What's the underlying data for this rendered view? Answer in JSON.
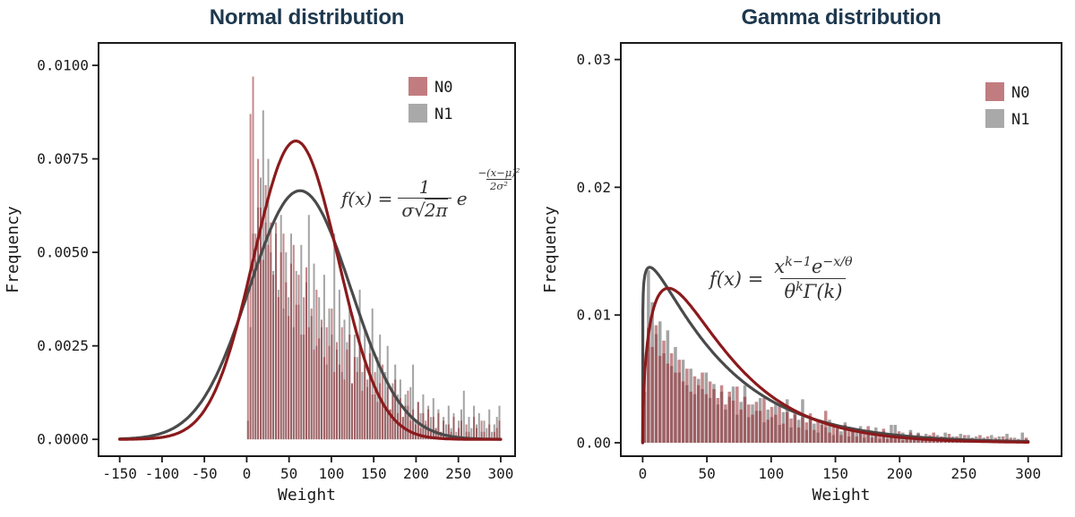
{
  "figure": {
    "background": "#ffffff"
  },
  "chart_data": [
    {
      "type": "histogram+density",
      "title": "Normal distribution",
      "title_color": "#1d384e",
      "xlabel": "Weight",
      "ylabel": "Frequency",
      "xlim": [
        -175,
        317
      ],
      "ylim": [
        -0.00045,
        0.0106
      ],
      "grid": false,
      "x_ticks": [
        {
          "label": "-150",
          "value": -150
        },
        {
          "label": "-100",
          "value": -100
        },
        {
          "label": "-50",
          "value": -50
        },
        {
          "label": "0",
          "value": 0
        },
        {
          "label": "50",
          "value": 50
        },
        {
          "label": "100",
          "value": 100
        },
        {
          "label": "150",
          "value": 150
        },
        {
          "label": "200",
          "value": 200
        },
        {
          "label": "250",
          "value": 250
        },
        {
          "label": "300",
          "value": 300
        }
      ],
      "y_ticks": [
        {
          "label": "0.0000",
          "value": 0.0
        },
        {
          "label": "0.0025",
          "value": 0.0025
        },
        {
          "label": "0.0050",
          "value": 0.005
        },
        {
          "label": "0.0075",
          "value": 0.0075
        },
        {
          "label": "0.0100",
          "value": 0.01
        }
      ],
      "legend": {
        "position": "upper-right",
        "items": [
          {
            "label": "N0",
            "color": "#c17c80"
          },
          {
            "label": "N1",
            "color": "#a9a9a9"
          }
        ]
      },
      "histogram": {
        "bin_start": 0,
        "bin_width": 3,
        "height_scale": 0.0001,
        "series": [
          {
            "name": "N1",
            "fill": "#4a4a4a",
            "opacity": 0.5,
            "heights": [
              5,
              30,
              55,
              48,
              62,
              70,
              88,
              58,
              75,
              50,
              45,
              55,
              40,
              60,
              35,
              50,
              38,
              55,
              30,
              45,
              36,
              52,
              28,
              42,
              60,
              33,
              47,
              25,
              38,
              30,
              44,
              20,
              35,
              28,
              55,
              24,
              40,
              18,
              32,
              26,
              36,
              15,
              28,
              22,
              40,
              18,
              30,
              14,
              25,
              35,
              12,
              22,
              28,
              10,
              18,
              25,
              8,
              15,
              20,
              12,
              16,
              6,
              12,
              9,
              14,
              20,
              5,
              10,
              7,
              12,
              4,
              9,
              6,
              11,
              3,
              8,
              2,
              6,
              4,
              9,
              3,
              7,
              2,
              5,
              8,
              13,
              2,
              6,
              3,
              9,
              4,
              7,
              2,
              5,
              3,
              8,
              2,
              4,
              6,
              9
            ]
          },
          {
            "name": "N0",
            "fill": "#96282d",
            "opacity": 0.55,
            "heights": [
              40,
              87,
              97,
              55,
              75,
              62,
              48,
              68,
              52,
              58,
              44,
              58,
              38,
              50,
              55,
              42,
              33,
              47,
              52,
              36,
              44,
              28,
              38,
              46,
              30,
              35,
              24,
              40,
              27,
              32,
              22,
              30,
              25,
              35,
              18,
              26,
              20,
              30,
              16,
              24,
              28,
              15,
              22,
              18,
              25,
              13,
              20,
              16,
              23,
              12,
              18,
              10,
              15,
              20,
              9,
              14,
              8,
              12,
              16,
              7,
              11,
              6,
              9,
              13,
              5,
              8,
              4,
              10,
              3,
              7,
              5,
              8,
              2,
              6,
              3,
              7,
              2,
              5,
              0,
              4,
              2,
              6,
              0,
              3,
              5,
              0,
              4,
              2,
              0,
              6,
              3,
              0,
              5,
              2,
              0,
              4,
              0,
              2,
              3,
              5
            ]
          }
        ]
      },
      "curves": [
        {
          "name": "N1",
          "type": "normal",
          "mu": 63,
          "sigma": 60,
          "color": "#4a4a4a",
          "x_range": [
            -150,
            300
          ]
        },
        {
          "name": "N0",
          "type": "normal",
          "mu": 58,
          "sigma": 50,
          "color": "#8b1a1c",
          "x_range": [
            -150,
            300
          ]
        }
      ],
      "formula": {
        "lhs": "f(x) =",
        "numerator": "1",
        "den_sigma": "σ",
        "den_radical": "√",
        "den_radicand": "2π",
        "e_base": "e",
        "exp_numerator": "−(x−μ)²",
        "exp_denominator": "2σ²"
      }
    },
    {
      "type": "histogram+density",
      "title": "Gamma distribution",
      "title_color": "#1d384e",
      "xlabel": "Weight",
      "ylabel": "Frequency",
      "xlim": [
        -17,
        326
      ],
      "ylim": [
        -0.00105,
        0.0313
      ],
      "grid": false,
      "x_ticks": [
        {
          "label": "0",
          "value": 0
        },
        {
          "label": "50",
          "value": 50
        },
        {
          "label": "100",
          "value": 100
        },
        {
          "label": "150",
          "value": 150
        },
        {
          "label": "200",
          "value": 200
        },
        {
          "label": "250",
          "value": 250
        },
        {
          "label": "300",
          "value": 300
        }
      ],
      "y_ticks": [
        {
          "label": "0.00",
          "value": 0.0
        },
        {
          "label": "0.01",
          "value": 0.01
        },
        {
          "label": "0.02",
          "value": 0.02
        },
        {
          "label": "0.03",
          "value": 0.03
        }
      ],
      "legend": {
        "position": "upper-right",
        "items": [
          {
            "label": "N0",
            "color": "#c17c80"
          },
          {
            "label": "N1",
            "color": "#a9a9a9"
          }
        ]
      },
      "histogram": {
        "bin_start": 0,
        "bin_width": 3,
        "height_scale": 0.0001,
        "series": [
          {
            "name": "N1",
            "fill": "#4a4a4a",
            "opacity": 0.5,
            "heights": [
              40,
              135,
              110,
              85,
              95,
              70,
              88,
              60,
              75,
              55,
              65,
              45,
              58,
              38,
              50,
              42,
              55,
              35,
              46,
              30,
              40,
              26,
              36,
              44,
              22,
              32,
              45,
              20,
              30,
              25,
              35,
              16,
              26,
              20,
              30,
              14,
              24,
              34,
              12,
              22,
              18,
              34,
              10,
              20,
              15,
              8,
              16,
              12,
              18,
              6,
              14,
              9,
              16,
              5,
              12,
              8,
              13,
              4,
              10,
              7,
              12,
              3,
              9,
              6,
              14,
              14,
              5,
              8,
              3,
              10,
              4,
              8,
              2,
              7,
              5,
              2,
              6,
              3,
              8,
              2,
              5,
              2,
              7,
              3,
              6,
              2,
              5,
              2,
              4,
              2,
              6,
              2,
              5,
              2,
              7,
              2,
              4,
              2,
              8,
              3
            ]
          },
          {
            "name": "N0",
            "fill": "#96282d",
            "opacity": 0.55,
            "heights": [
              55,
              90,
              75,
              92,
              68,
              80,
              62,
              70,
              55,
              65,
              48,
              58,
              40,
              52,
              45,
              55,
              38,
              48,
              42,
              35,
              45,
              30,
              40,
              33,
              44,
              26,
              36,
              30,
              22,
              32,
              25,
              35,
              18,
              28,
              22,
              30,
              15,
              24,
              19,
              26,
              12,
              20,
              16,
              23,
              10,
              18,
              14,
              25,
              8,
              15,
              11,
              6,
              14,
              9,
              12,
              5,
              10,
              7,
              13,
              4,
              8,
              6,
              11,
              3,
              7,
              5,
              9,
              2,
              6,
              8,
              3,
              7,
              4,
              2,
              6,
              8,
              2,
              5,
              3,
              7,
              2,
              5,
              3,
              6,
              2,
              4,
              2,
              6,
              3,
              5,
              2,
              4,
              2,
              5,
              3,
              4,
              2,
              3,
              2,
              4
            ]
          }
        ]
      },
      "curves": [
        {
          "name": "N1",
          "type": "gamma",
          "k": 1.1,
          "theta": 55,
          "gamma_k": 0.95135,
          "color": "#4a4a4a",
          "x_range": [
            0,
            300
          ]
        },
        {
          "name": "N0",
          "type": "gamma",
          "k": 1.5,
          "theta": 40,
          "gamma_k": 0.886227,
          "color": "#8b1a1c",
          "x_range": [
            0,
            300
          ]
        }
      ],
      "formula": {
        "lhs": "f(x) =",
        "num_base1": "x",
        "num_sup1": "k−1",
        "num_base2": "e",
        "num_sup2": "−x/θ",
        "den_base1": "θ",
        "den_sup1": "k",
        "den_base2": "Γ(k)"
      }
    }
  ]
}
